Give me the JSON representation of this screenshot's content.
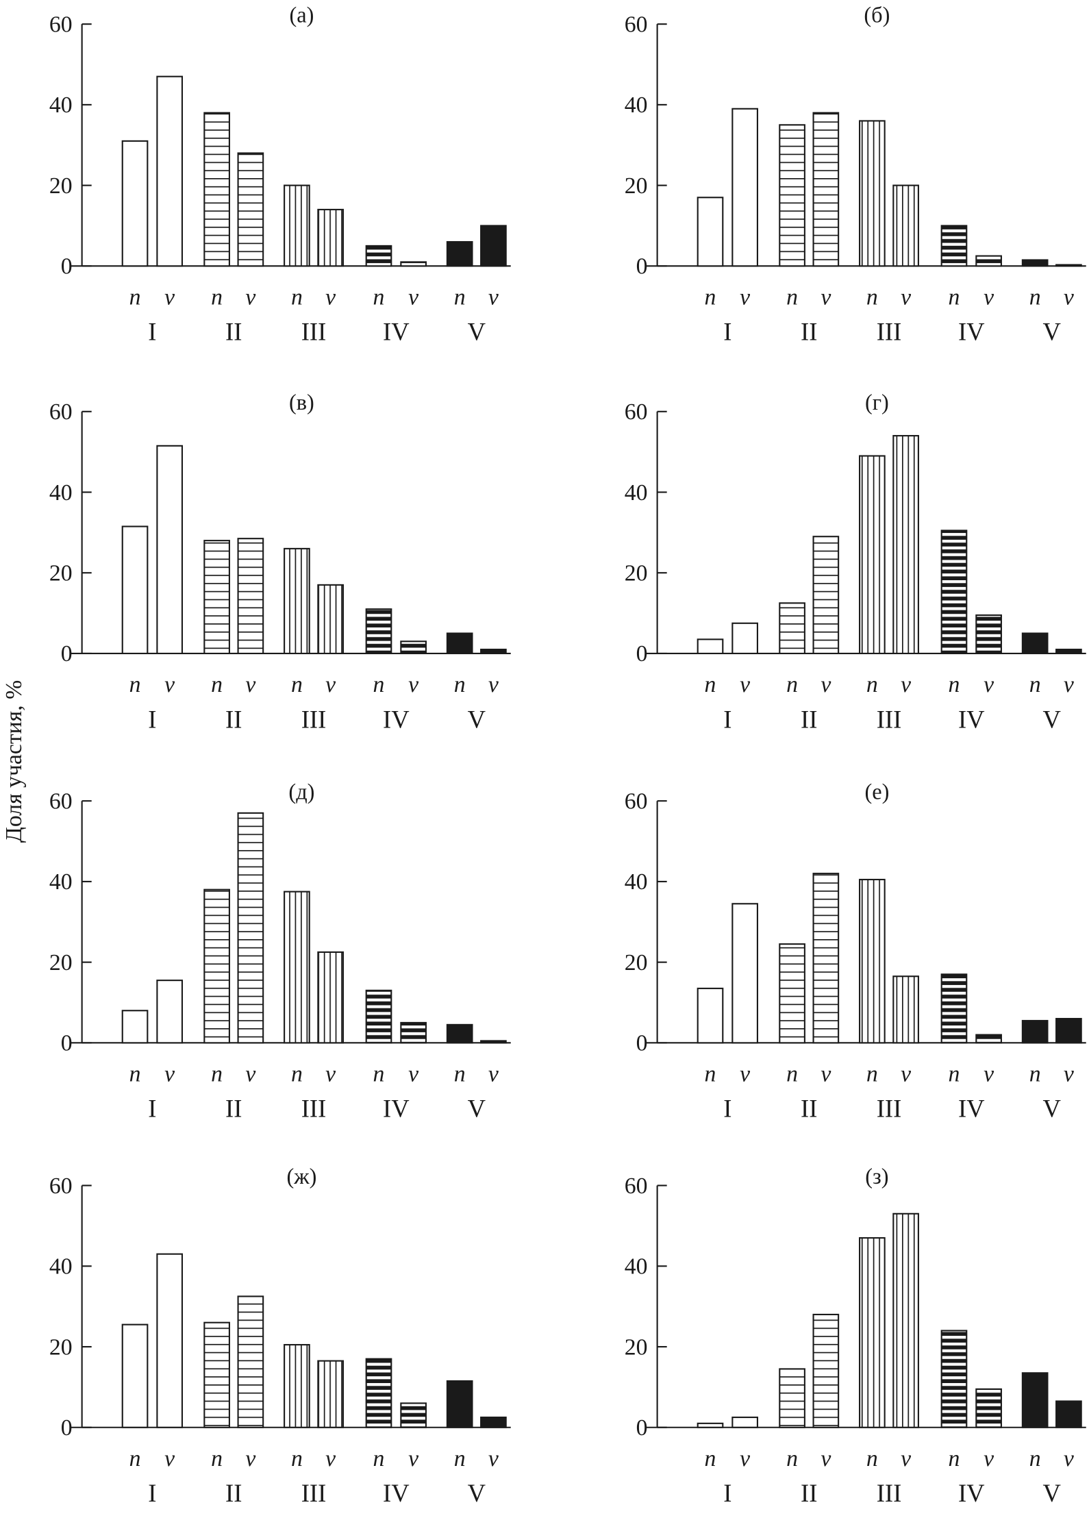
{
  "chart_data": {
    "type": "bar",
    "ylabel": "Доля участия, %",
    "ylim": [
      0,
      60
    ],
    "yticks": [
      0,
      20,
      40,
      60
    ],
    "categories": [
      "I",
      "II",
      "III",
      "IV",
      "V"
    ],
    "subcategories": [
      "n",
      "v"
    ],
    "fill_patterns": {
      "I": "empty",
      "II": "horizontal-lines",
      "III": "vertical-lines",
      "IV": "thick-black-stripes",
      "V": "solid-black"
    },
    "colors": {
      "stroke": "#1a1a1a",
      "fill": "#ffffff"
    },
    "panels": [
      {
        "title": "(а)",
        "n": [
          31,
          38,
          20,
          5,
          6
        ],
        "v": [
          47,
          28,
          14,
          1,
          10
        ]
      },
      {
        "title": "(б)",
        "n": [
          17,
          35,
          36,
          10,
          1.5
        ],
        "v": [
          39,
          38,
          20,
          2.5,
          0.3
        ]
      },
      {
        "title": "(в)",
        "n": [
          31.5,
          28,
          26,
          11,
          5
        ],
        "v": [
          51.5,
          28.5,
          17,
          3,
          1
        ]
      },
      {
        "title": "(г)",
        "n": [
          3.5,
          12.5,
          49,
          30.5,
          5
        ],
        "v": [
          7.5,
          29,
          54,
          9.5,
          1
        ]
      },
      {
        "title": "(д)",
        "n": [
          8,
          38,
          37.5,
          13,
          4.5
        ],
        "v": [
          15.5,
          57,
          22.5,
          5,
          0.5
        ]
      },
      {
        "title": "(е)",
        "n": [
          13.5,
          24.5,
          40.5,
          17,
          5.5
        ],
        "v": [
          34.5,
          42,
          16.5,
          2,
          6
        ]
      },
      {
        "title": "(ж)",
        "n": [
          25.5,
          26,
          20.5,
          17,
          11.5
        ],
        "v": [
          43,
          32.5,
          16.5,
          6,
          2.5
        ]
      },
      {
        "title": "(з)",
        "n": [
          1,
          14.5,
          47,
          24,
          13.5
        ],
        "v": [
          2.5,
          28,
          53,
          9.5,
          6.5
        ]
      }
    ]
  }
}
